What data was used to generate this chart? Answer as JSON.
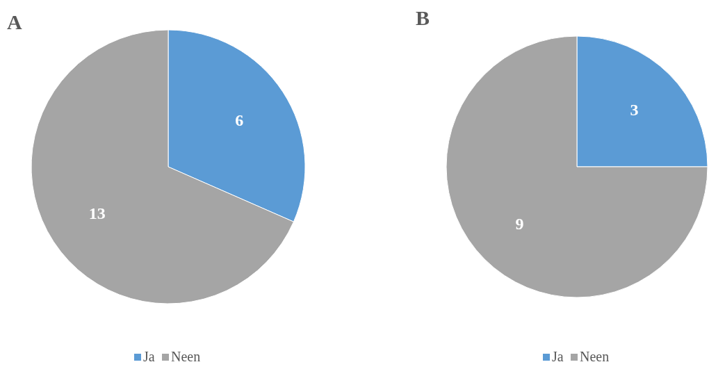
{
  "chart_data": [
    {
      "type": "pie",
      "title": "A",
      "categories": [
        "Ja",
        "Neen"
      ],
      "values": [
        6,
        13
      ],
      "colors": [
        "#5b9bd5",
        "#a5a5a5"
      ],
      "data_labels": true,
      "legend": "bottom"
    },
    {
      "type": "pie",
      "title": "B",
      "categories": [
        "Ja",
        "Neen"
      ],
      "values": [
        3,
        9
      ],
      "colors": [
        "#5b9bd5",
        "#a5a5a5"
      ],
      "data_labels": true,
      "legend": "bottom"
    }
  ]
}
